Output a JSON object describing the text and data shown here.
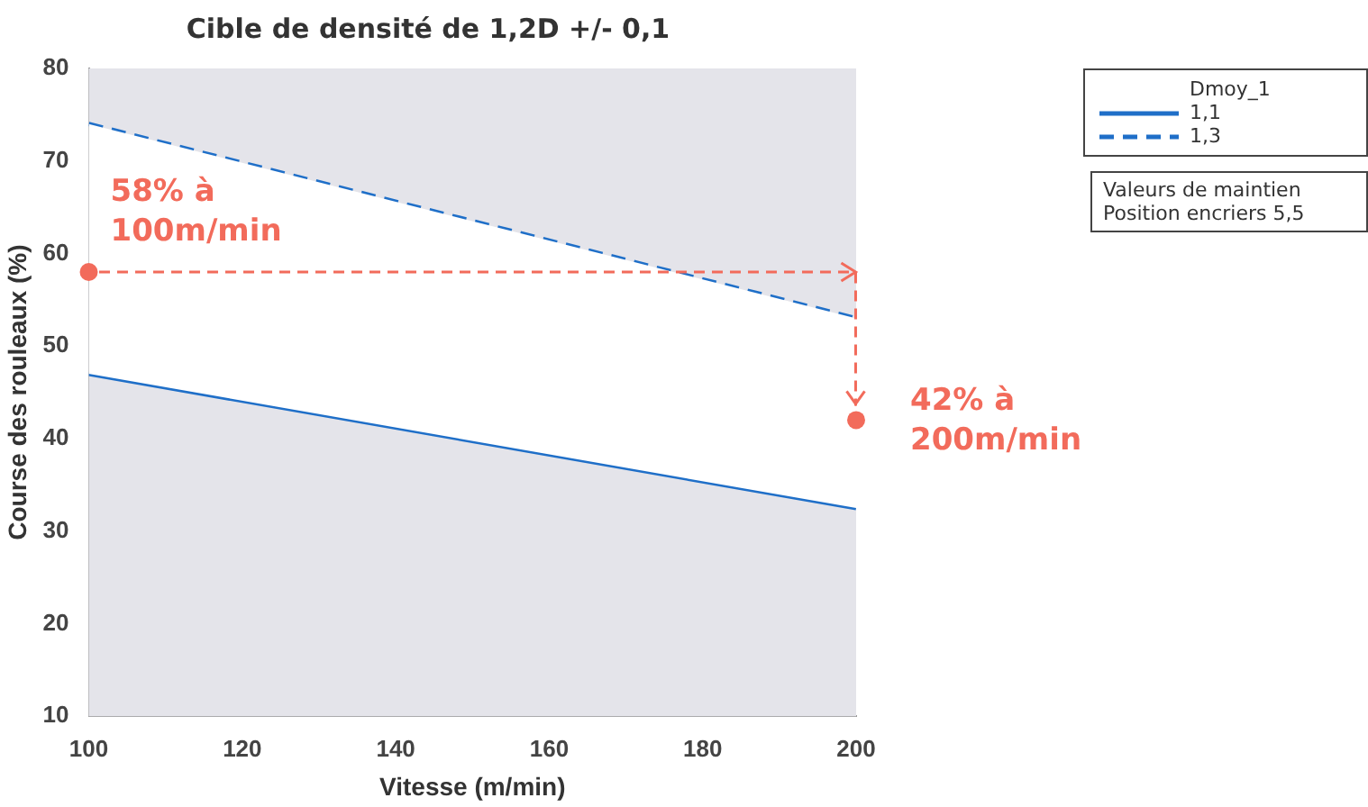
{
  "chart_data": {
    "type": "line",
    "title": "Cible de densité de 1,2D +/- 0,1",
    "xlabel": "Vitesse (m/min)",
    "ylabel": "Course des rouleaux (%)",
    "legend_title": "Dmoy_1",
    "x": [
      100,
      200
    ],
    "series": [
      {
        "name": "1,1",
        "color": "#1f6fc8",
        "values": [
          47,
          32.5
        ],
        "line_style": "solid"
      },
      {
        "name": "1,3",
        "color": "#1f6fc8",
        "values": [
          74,
          53
        ],
        "line_style": "dashed",
        "lower": [
          47,
          32.5
        ],
        "upper": [
          74,
          53
        ]
      }
    ],
    "xlim": [
      100,
      200
    ],
    "xticks": [
      100,
      120,
      140,
      160,
      180,
      200
    ],
    "ylim": [
      10,
      80
    ],
    "yticks": [
      10,
      20,
      30,
      40,
      50,
      60,
      70,
      80
    ],
    "annotations": [
      {
        "text": "58% à\n100m/min",
        "x": 100,
        "y": 58
      },
      {
        "text": "42% à\n200m/min",
        "x": 200,
        "y": 42
      },
      "Valeurs de maintien\nPosition encriers 5,5"
    ],
    "grid": false,
    "legend": "top right",
    "marker": "none"
  }
}
